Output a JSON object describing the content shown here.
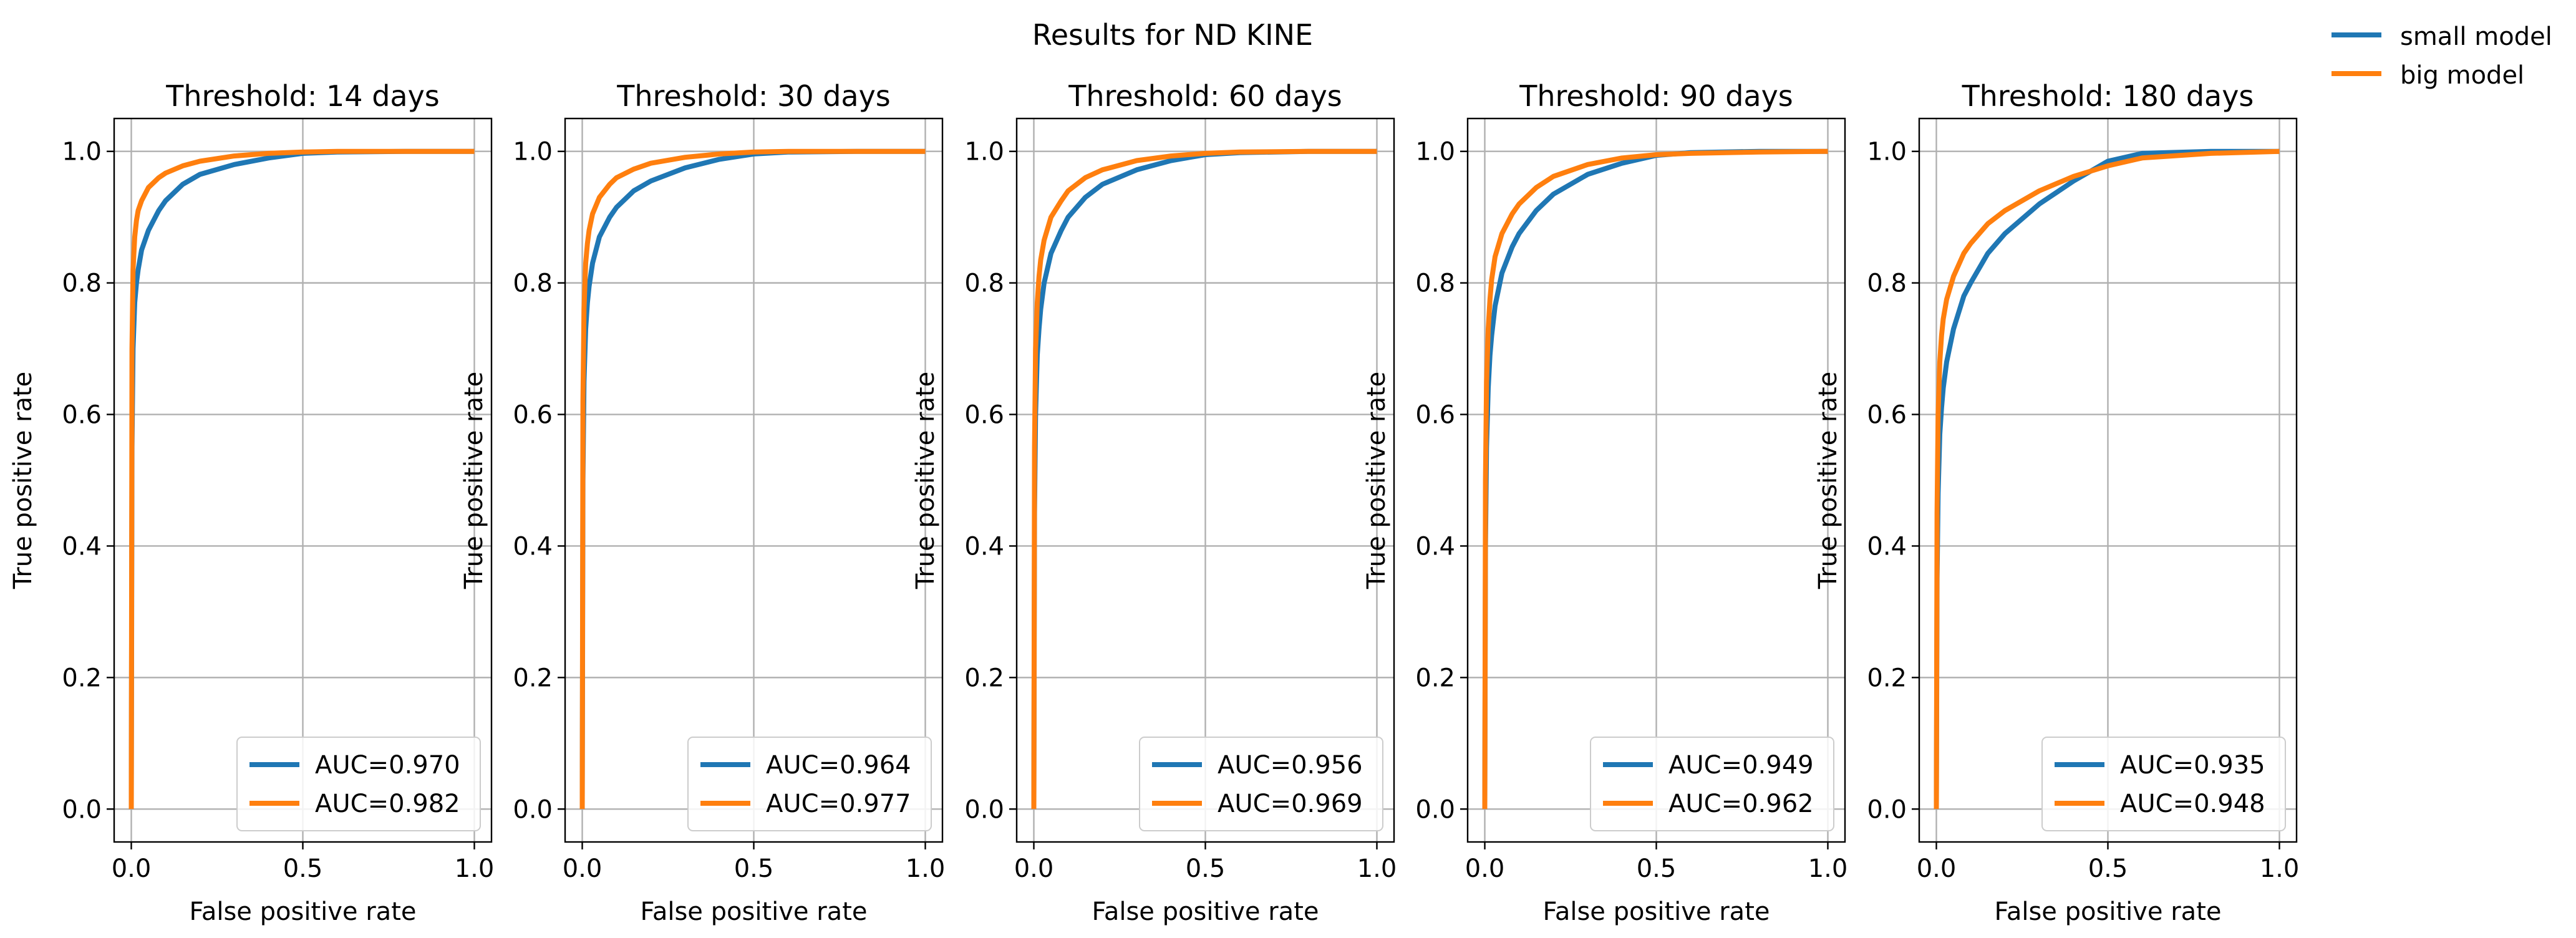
{
  "figure": {
    "suptitle": "Results for ND KINE",
    "legend": [
      {
        "name": "small model",
        "color": "#1f77b4"
      },
      {
        "name": "big model",
        "color": "#ff7f0e"
      }
    ]
  },
  "chart_data": [
    {
      "type": "line",
      "title": "Threshold: 14 days",
      "xlabel": "False positive rate",
      "ylabel": "True positive rate",
      "xlim": [
        -0.05,
        1.05
      ],
      "ylim": [
        -0.05,
        1.05
      ],
      "xticks": [
        "0.0",
        "0.5",
        "1.0"
      ],
      "yticks": [
        "0.0",
        "0.2",
        "0.4",
        "0.6",
        "0.8",
        "1.0"
      ],
      "grid": true,
      "legend_position": "lower-right",
      "series": [
        {
          "name": "small model",
          "color": "#1f77b4",
          "label": "AUC=0.970",
          "x": [
            0,
            0.002,
            0.005,
            0.01,
            0.015,
            0.02,
            0.03,
            0.05,
            0.08,
            0.1,
            0.15,
            0.2,
            0.3,
            0.4,
            0.5,
            0.6,
            0.8,
            1.0
          ],
          "y": [
            0,
            0.55,
            0.7,
            0.77,
            0.8,
            0.82,
            0.85,
            0.88,
            0.91,
            0.925,
            0.95,
            0.965,
            0.98,
            0.99,
            0.997,
            0.999,
            1.0,
            1.0
          ]
        },
        {
          "name": "big model",
          "color": "#ff7f0e",
          "label": "AUC=0.982",
          "x": [
            0,
            0.002,
            0.005,
            0.01,
            0.015,
            0.02,
            0.03,
            0.05,
            0.08,
            0.1,
            0.15,
            0.2,
            0.3,
            0.4,
            0.5,
            0.6,
            0.8,
            1.0
          ],
          "y": [
            0,
            0.7,
            0.82,
            0.87,
            0.895,
            0.91,
            0.925,
            0.945,
            0.96,
            0.967,
            0.978,
            0.985,
            0.993,
            0.997,
            0.999,
            1.0,
            1.0,
            1.0
          ]
        }
      ]
    },
    {
      "type": "line",
      "title": "Threshold: 30 days",
      "xlabel": "False positive rate",
      "ylabel": "True positive rate",
      "xlim": [
        -0.05,
        1.05
      ],
      "ylim": [
        -0.05,
        1.05
      ],
      "xticks": [
        "0.0",
        "0.5",
        "1.0"
      ],
      "yticks": [
        "0.0",
        "0.2",
        "0.4",
        "0.6",
        "0.8",
        "1.0"
      ],
      "grid": true,
      "legend_position": "lower-right",
      "series": [
        {
          "name": "small model",
          "color": "#1f77b4",
          "label": "AUC=0.964",
          "x": [
            0,
            0.002,
            0.005,
            0.01,
            0.015,
            0.02,
            0.03,
            0.05,
            0.08,
            0.1,
            0.15,
            0.2,
            0.3,
            0.4,
            0.5,
            0.6,
            0.8,
            1.0
          ],
          "y": [
            0,
            0.5,
            0.65,
            0.73,
            0.77,
            0.795,
            0.83,
            0.87,
            0.9,
            0.915,
            0.94,
            0.955,
            0.975,
            0.988,
            0.996,
            0.999,
            1.0,
            1.0
          ]
        },
        {
          "name": "big model",
          "color": "#ff7f0e",
          "label": "AUC=0.977",
          "x": [
            0,
            0.002,
            0.005,
            0.01,
            0.015,
            0.02,
            0.03,
            0.05,
            0.08,
            0.1,
            0.15,
            0.2,
            0.3,
            0.4,
            0.5,
            0.6,
            0.8,
            1.0
          ],
          "y": [
            0,
            0.62,
            0.76,
            0.83,
            0.86,
            0.88,
            0.905,
            0.93,
            0.95,
            0.96,
            0.973,
            0.982,
            0.991,
            0.996,
            0.999,
            1.0,
            1.0,
            1.0
          ]
        }
      ]
    },
    {
      "type": "line",
      "title": "Threshold: 60 days",
      "xlabel": "False positive rate",
      "ylabel": "True positive rate",
      "xlim": [
        -0.05,
        1.05
      ],
      "ylim": [
        -0.05,
        1.05
      ],
      "xticks": [
        "0.0",
        "0.5",
        "1.0"
      ],
      "yticks": [
        "0.0",
        "0.2",
        "0.4",
        "0.6",
        "0.8",
        "1.0"
      ],
      "grid": true,
      "legend_position": "lower-right",
      "series": [
        {
          "name": "small model",
          "color": "#1f77b4",
          "label": "AUC=0.956",
          "x": [
            0,
            0.002,
            0.005,
            0.01,
            0.015,
            0.02,
            0.03,
            0.05,
            0.08,
            0.1,
            0.15,
            0.2,
            0.3,
            0.4,
            0.5,
            0.6,
            0.8,
            1.0
          ],
          "y": [
            0,
            0.45,
            0.6,
            0.69,
            0.73,
            0.76,
            0.8,
            0.845,
            0.88,
            0.9,
            0.93,
            0.95,
            0.972,
            0.986,
            0.995,
            0.998,
            1.0,
            1.0
          ]
        },
        {
          "name": "big model",
          "color": "#ff7f0e",
          "label": "AUC=0.969",
          "x": [
            0,
            0.002,
            0.005,
            0.01,
            0.015,
            0.02,
            0.03,
            0.05,
            0.08,
            0.1,
            0.15,
            0.2,
            0.3,
            0.4,
            0.5,
            0.6,
            0.8,
            1.0
          ],
          "y": [
            0,
            0.55,
            0.7,
            0.77,
            0.81,
            0.835,
            0.865,
            0.9,
            0.925,
            0.94,
            0.96,
            0.972,
            0.986,
            0.993,
            0.997,
            0.999,
            1.0,
            1.0
          ]
        }
      ]
    },
    {
      "type": "line",
      "title": "Threshold: 90 days",
      "xlabel": "False positive rate",
      "ylabel": "True positive rate",
      "xlim": [
        -0.05,
        1.05
      ],
      "ylim": [
        -0.05,
        1.05
      ],
      "xticks": [
        "0.0",
        "0.5",
        "1.0"
      ],
      "yticks": [
        "0.0",
        "0.2",
        "0.4",
        "0.6",
        "0.8",
        "1.0"
      ],
      "grid": true,
      "legend_position": "lower-right",
      "series": [
        {
          "name": "small model",
          "color": "#1f77b4",
          "label": "AUC=0.949",
          "x": [
            0,
            0.002,
            0.005,
            0.01,
            0.015,
            0.02,
            0.03,
            0.05,
            0.08,
            0.1,
            0.15,
            0.2,
            0.3,
            0.4,
            0.5,
            0.6,
            0.8,
            1.0
          ],
          "y": [
            0,
            0.4,
            0.55,
            0.64,
            0.69,
            0.72,
            0.765,
            0.815,
            0.855,
            0.875,
            0.91,
            0.935,
            0.965,
            0.982,
            0.994,
            0.998,
            1.0,
            1.0
          ]
        },
        {
          "name": "big model",
          "color": "#ff7f0e",
          "label": "AUC=0.962",
          "x": [
            0,
            0.002,
            0.005,
            0.01,
            0.015,
            0.02,
            0.03,
            0.05,
            0.08,
            0.1,
            0.15,
            0.2,
            0.3,
            0.4,
            0.5,
            0.6,
            0.8,
            1.0
          ],
          "y": [
            0,
            0.5,
            0.65,
            0.73,
            0.775,
            0.805,
            0.84,
            0.875,
            0.905,
            0.92,
            0.945,
            0.962,
            0.98,
            0.99,
            0.995,
            0.997,
            0.999,
            1.0
          ]
        }
      ]
    },
    {
      "type": "line",
      "title": "Threshold: 180 days",
      "xlabel": "False positive rate",
      "ylabel": "True positive rate",
      "xlim": [
        -0.05,
        1.05
      ],
      "ylim": [
        -0.05,
        1.05
      ],
      "xticks": [
        "0.0",
        "0.5",
        "1.0"
      ],
      "yticks": [
        "0.0",
        "0.2",
        "0.4",
        "0.6",
        "0.8",
        "1.0"
      ],
      "grid": true,
      "legend_position": "lower-right",
      "series": [
        {
          "name": "small model",
          "color": "#1f77b4",
          "label": "AUC=0.935",
          "x": [
            0,
            0.002,
            0.005,
            0.01,
            0.015,
            0.02,
            0.03,
            0.05,
            0.08,
            0.1,
            0.15,
            0.2,
            0.3,
            0.4,
            0.5,
            0.6,
            0.8,
            1.0
          ],
          "y": [
            0,
            0.35,
            0.48,
            0.57,
            0.61,
            0.64,
            0.68,
            0.73,
            0.78,
            0.8,
            0.845,
            0.875,
            0.92,
            0.955,
            0.985,
            0.997,
            1.0,
            1.0
          ]
        },
        {
          "name": "big model",
          "color": "#ff7f0e",
          "label": "AUC=0.948",
          "x": [
            0,
            0.002,
            0.005,
            0.01,
            0.015,
            0.02,
            0.03,
            0.05,
            0.08,
            0.1,
            0.15,
            0.2,
            0.3,
            0.4,
            0.5,
            0.6,
            0.8,
            1.0
          ],
          "y": [
            0,
            0.45,
            0.6,
            0.68,
            0.72,
            0.745,
            0.775,
            0.81,
            0.845,
            0.86,
            0.89,
            0.91,
            0.94,
            0.962,
            0.978,
            0.99,
            0.997,
            1.0
          ]
        }
      ]
    }
  ]
}
